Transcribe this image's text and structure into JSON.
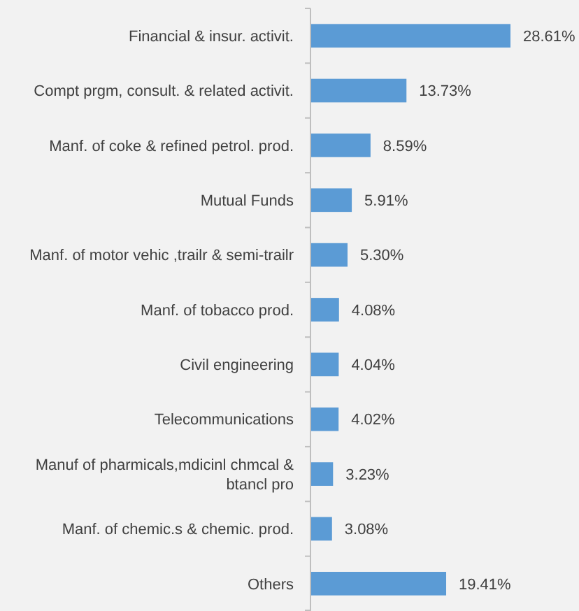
{
  "chart_data": {
    "type": "bar",
    "orientation": "horizontal",
    "categories": [
      "Financial & insur. activit.",
      "Compt prgm, consult. & related activit.",
      "Manf. of coke & refined petrol. prod.",
      "Mutual Funds",
      "Manf. of motor vehic ,trailr & semi-trailr",
      "Manf. of tobacco prod.",
      "Civil engineering",
      "Telecommunications",
      "Manuf of pharmicals,mdicinl chmcal & btancl pro",
      "Manf. of chemic.s & chemic. prod.",
      "Others"
    ],
    "values": [
      28.61,
      13.73,
      8.59,
      5.91,
      5.3,
      4.08,
      4.04,
      4.02,
      3.23,
      3.08,
      19.41
    ],
    "value_labels": [
      "28.61%",
      "13.73%",
      "8.59%",
      "5.91%",
      "5.30%",
      "4.08%",
      "4.04%",
      "4.02%",
      "3.23%",
      "3.08%",
      "19.41%"
    ],
    "color": "#5b9bd5",
    "tick_labels": "y"
  }
}
